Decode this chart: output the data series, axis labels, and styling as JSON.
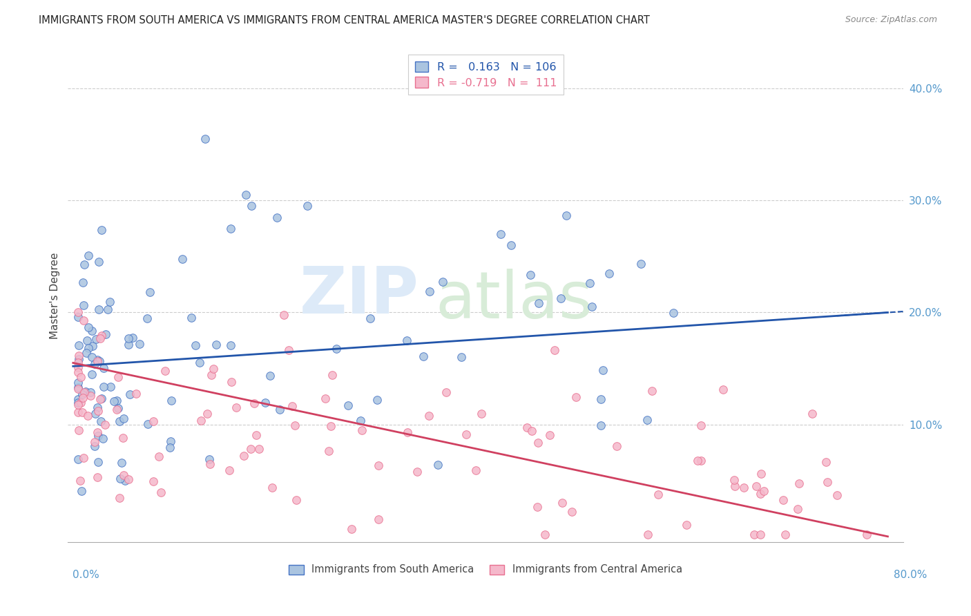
{
  "title": "IMMIGRANTS FROM SOUTH AMERICA VS IMMIGRANTS FROM CENTRAL AMERICA MASTER'S DEGREE CORRELATION CHART",
  "source": "Source: ZipAtlas.com",
  "ylabel": "Master's Degree",
  "xlim": [
    0.0,
    0.8
  ],
  "ylim": [
    -0.005,
    0.435
  ],
  "blue_R": 0.163,
  "blue_N": 106,
  "pink_R": -0.719,
  "pink_N": 111,
  "blue_color": "#aac4e0",
  "pink_color": "#f5b8cb",
  "blue_edge_color": "#4472c4",
  "pink_edge_color": "#e87090",
  "blue_line_color": "#2255aa",
  "pink_line_color": "#d04060",
  "grid_color": "#cccccc",
  "axis_label_color": "#5599cc",
  "title_color": "#222222",
  "source_color": "#888888",
  "watermark_zip_color": "#ddeaf8",
  "watermark_atlas_color": "#d8ecd8"
}
